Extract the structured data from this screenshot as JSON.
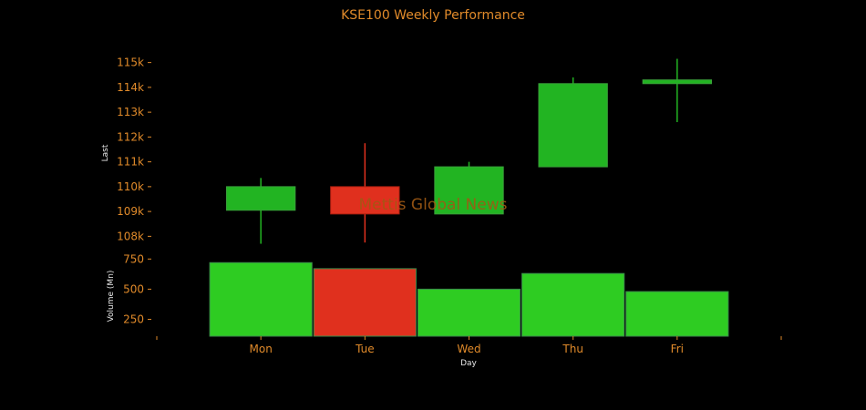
{
  "chart_data": {
    "type": "candlestick",
    "title": "KSE100 Weekly Performance",
    "watermark": "Mettis Global News",
    "xlabel": "Day",
    "categories": [
      "Mon",
      "Tue",
      "Wed",
      "Thu",
      "Fri"
    ],
    "price_panel": {
      "ylabel": "Last",
      "ylim": [
        107500,
        115500
      ],
      "yticks": [
        108000,
        109000,
        110000,
        111000,
        112000,
        113000,
        114000,
        115000
      ],
      "ytick_labels": [
        "108k",
        "109k",
        "110k",
        "111k",
        "112k",
        "113k",
        "114k",
        "115k"
      ],
      "candles": [
        {
          "day": "Mon",
          "open": 109050,
          "high": 110350,
          "low": 107700,
          "close": 110000,
          "direction": "up"
        },
        {
          "day": "Tue",
          "open": 110000,
          "high": 111750,
          "low": 107750,
          "close": 108900,
          "direction": "down"
        },
        {
          "day": "Wed",
          "open": 108900,
          "high": 111000,
          "low": 108900,
          "close": 110800,
          "direction": "up"
        },
        {
          "day": "Thu",
          "open": 110800,
          "high": 114400,
          "low": 110800,
          "close": 114150,
          "direction": "up"
        },
        {
          "day": "Fri",
          "open": 114150,
          "high": 115150,
          "low": 112600,
          "close": 114300,
          "direction": "up"
        }
      ]
    },
    "volume_panel": {
      "ylabel": "Volume (Mn)",
      "ylim": [
        110,
        790
      ],
      "yticks": [
        250,
        500,
        750
      ],
      "ytick_labels": [
        "250",
        "500",
        "750"
      ],
      "values": [
        720,
        670,
        500,
        630,
        480
      ],
      "directions": [
        "up",
        "down",
        "up",
        "up",
        "up"
      ]
    },
    "colors": {
      "background": "#000000",
      "up": "#22b422",
      "up_volume": "#2ecc22",
      "down": "#e0301e",
      "axis_text": "#e08a2a",
      "label_text": "#e8e8e8",
      "watermark": "#a05a14"
    }
  }
}
